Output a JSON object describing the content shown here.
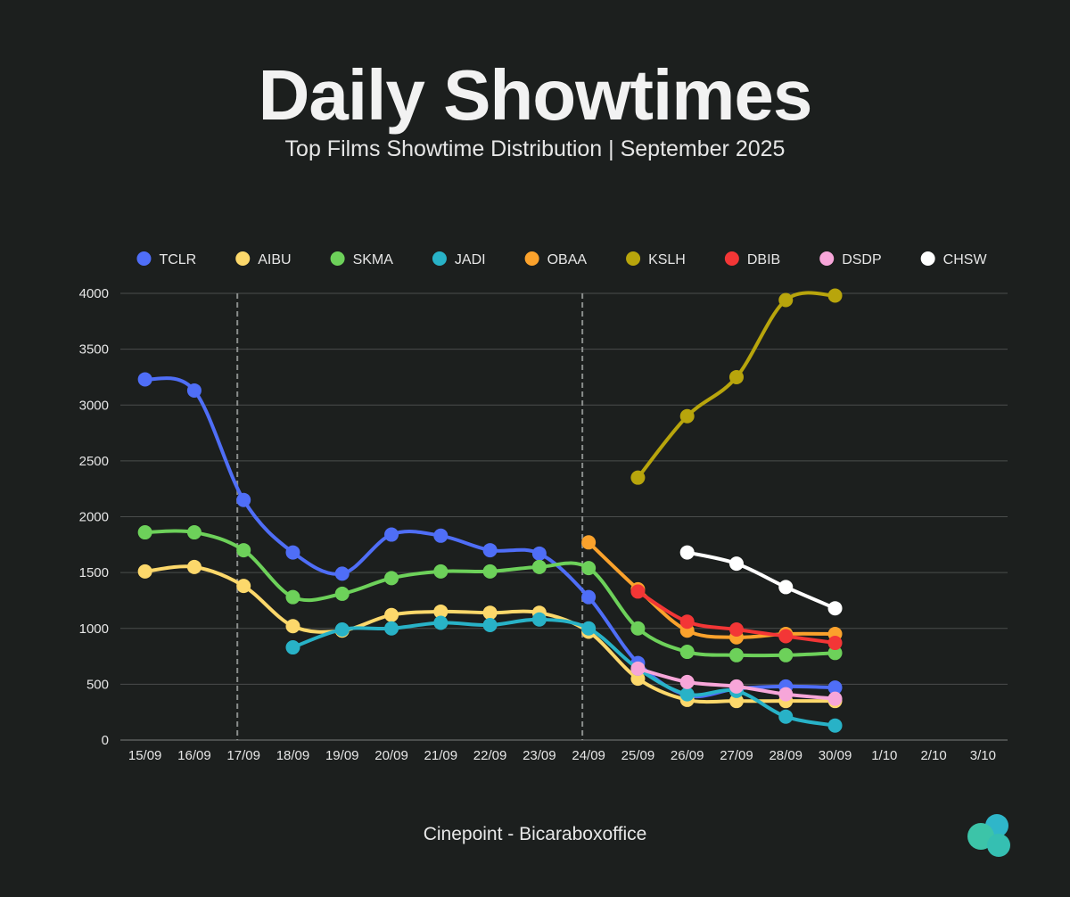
{
  "title": "Daily Showtimes",
  "subtitle": "Top Films Showtime Distribution | September 2025",
  "footer": "Cinepoint - Bicaraboxoffice",
  "chart_data": {
    "type": "line",
    "categories": [
      "15/09",
      "16/09",
      "17/09",
      "18/09",
      "19/09",
      "20/09",
      "21/09",
      "22/09",
      "23/09",
      "24/09",
      "25/09",
      "26/09",
      "27/09",
      "28/09",
      "30/09",
      "1/10",
      "2/10",
      "3/10"
    ],
    "ylim": [
      0,
      4000
    ],
    "yticks": [
      0,
      500,
      1000,
      1500,
      2000,
      2500,
      3000,
      3500,
      4000
    ],
    "grid": true,
    "legend_position": "top",
    "reference_lines_at": [
      "17/09",
      "24/09"
    ],
    "series": [
      {
        "name": "TCLR",
        "color": "#4f6ef7",
        "values": [
          3230,
          3130,
          2150,
          1680,
          1490,
          1840,
          1830,
          1700,
          1670,
          1280,
          690,
          400,
          460,
          480,
          470,
          null,
          null,
          null
        ]
      },
      {
        "name": "AIBU",
        "color": "#fcd86b",
        "values": [
          1510,
          1550,
          1380,
          1020,
          980,
          1120,
          1150,
          1140,
          1140,
          970,
          550,
          360,
          350,
          350,
          350,
          null,
          null,
          null
        ]
      },
      {
        "name": "SKMA",
        "color": "#6dd15a",
        "values": [
          1860,
          1860,
          1700,
          1280,
          1310,
          1450,
          1510,
          1510,
          1550,
          1540,
          1000,
          790,
          760,
          760,
          780,
          null,
          null,
          null
        ]
      },
      {
        "name": "JADI",
        "color": "#28b2c7",
        "values": [
          null,
          null,
          null,
          830,
          990,
          1000,
          1050,
          1030,
          1080,
          1000,
          640,
          410,
          440,
          210,
          130,
          null,
          null,
          null
        ]
      },
      {
        "name": "OBAA",
        "color": "#fba22c",
        "values": [
          null,
          null,
          null,
          null,
          null,
          null,
          null,
          null,
          null,
          1770,
          1350,
          980,
          920,
          950,
          950,
          null,
          null,
          null
        ]
      },
      {
        "name": "KSLH",
        "color": "#b8a50c",
        "values": [
          null,
          null,
          null,
          null,
          null,
          null,
          null,
          null,
          null,
          null,
          2350,
          2900,
          3250,
          3940,
          3980,
          null,
          null,
          null
        ]
      },
      {
        "name": "DBIB",
        "color": "#f33636",
        "values": [
          null,
          null,
          null,
          null,
          null,
          null,
          null,
          null,
          null,
          null,
          1330,
          1060,
          990,
          930,
          870,
          null,
          null,
          null
        ]
      },
      {
        "name": "DSDP",
        "color": "#f7a6d9",
        "values": [
          null,
          null,
          null,
          null,
          null,
          null,
          null,
          null,
          null,
          null,
          640,
          520,
          480,
          410,
          370,
          null,
          null,
          null
        ]
      },
      {
        "name": "CHSW",
        "color": "#ffffff",
        "values": [
          null,
          null,
          null,
          null,
          null,
          null,
          null,
          null,
          null,
          null,
          null,
          1680,
          1580,
          1370,
          1180,
          null,
          null,
          null
        ]
      }
    ]
  }
}
